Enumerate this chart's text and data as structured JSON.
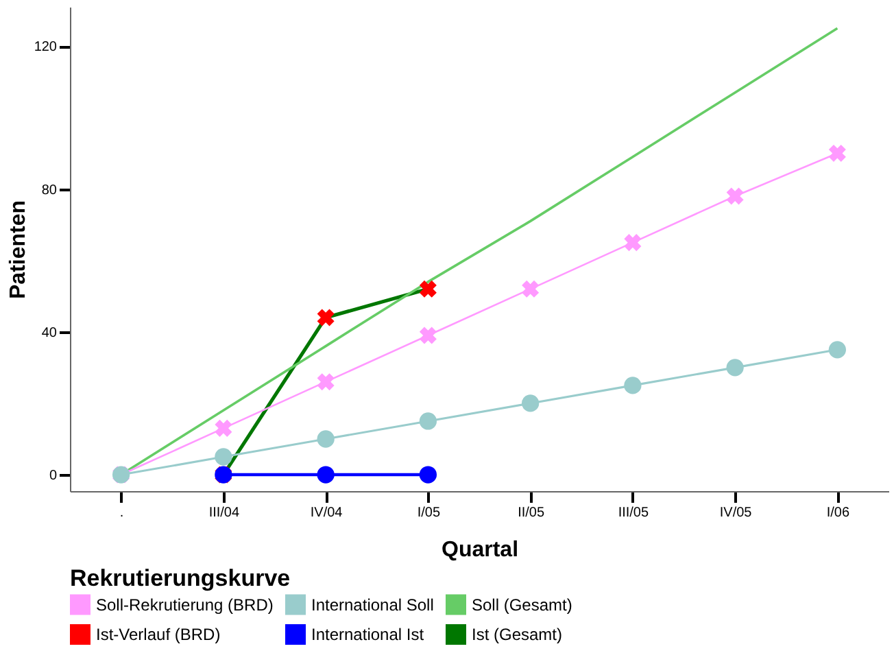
{
  "chart_data": {
    "type": "line",
    "xlabel": "Quartal",
    "ylabel": "Patienten",
    "legend_title": "Rekrutierungskurve",
    "legend": "bottom",
    "grid": false,
    "categories": [
      ".",
      "III/04",
      "IV/04",
      "I/05",
      "II/05",
      "III/05",
      "IV/05",
      "I/06"
    ],
    "ylim": [
      -4.6,
      131
    ],
    "yticks": [
      0,
      40,
      80,
      120
    ],
    "series": [
      {
        "name": "Soll-Rekrutierung (BRD)",
        "color": "#ff99ff",
        "marker": "cross",
        "values": [
          0,
          13,
          26,
          39,
          52,
          65,
          78,
          90
        ]
      },
      {
        "name": "International Soll",
        "color": "#99cccc",
        "marker": "circle",
        "values": [
          0,
          5,
          10,
          15,
          20,
          25,
          30,
          35
        ]
      },
      {
        "name": "Soll (Gesamt)",
        "color": "#66cc66",
        "marker": "none",
        "values": [
          0,
          18,
          36,
          54,
          71,
          89,
          107,
          125
        ]
      },
      {
        "name": "Ist-Verlauf (BRD)",
        "color": "#ff0000",
        "type": "scatter",
        "marker": "cross",
        "values": [
          null,
          0,
          44,
          52,
          null,
          null,
          null,
          null
        ]
      },
      {
        "name": "International Ist",
        "color": "#0000ff",
        "marker": "circle",
        "values": [
          null,
          0,
          0,
          0,
          null,
          null,
          null,
          null
        ]
      },
      {
        "name": "Ist (Gesamt)",
        "color": "#007700",
        "marker": "none",
        "values": [
          null,
          0,
          44,
          52,
          null,
          null,
          null,
          null
        ]
      }
    ]
  }
}
